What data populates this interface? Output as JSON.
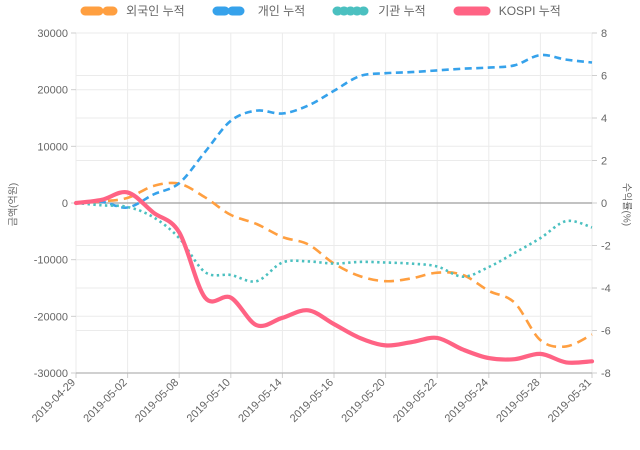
{
  "legend": {
    "items": [
      {
        "label": "외국인 누적",
        "color": "#FF9F40",
        "pattern": "dash-long"
      },
      {
        "label": "개인 누적",
        "color": "#36A2EB",
        "pattern": "dash"
      },
      {
        "label": "기관 누적",
        "color": "#4BC0C0",
        "pattern": "dot"
      },
      {
        "label": "KOSPI 누적",
        "color": "#FF6384",
        "pattern": "solid"
      }
    ]
  },
  "chart_data": {
    "type": "line",
    "title": "",
    "legend_position": "top",
    "grid": true,
    "x_tick_labels": [
      "2019-04-29",
      "2019-05-02",
      "2019-05-08",
      "2019-05-10",
      "2019-05-14",
      "2019-05-16",
      "2019-05-20",
      "2019-05-22",
      "2019-05-24",
      "2019-05-28",
      "2019-05-31"
    ],
    "points_per_tick": 2,
    "left_axis": {
      "label": "금액(억원)",
      "min": -30000,
      "max": 30000,
      "ticks": [
        30000,
        20000,
        10000,
        0,
        -10000,
        -20000,
        -30000
      ]
    },
    "right_axis": {
      "label": "수익률(%)",
      "min": -8,
      "max": 8,
      "ticks": [
        8,
        6,
        4,
        2,
        0,
        -2,
        -4,
        -6,
        -8
      ]
    },
    "series": [
      {
        "name": "외국인 누적",
        "axis": "left",
        "color": "#FF9F40",
        "dash": "10 6",
        "width": 2.6,
        "values": [
          0,
          300,
          900,
          3000,
          3400,
          1000,
          -2100,
          -3700,
          -6000,
          -7300,
          -10700,
          -12900,
          -13800,
          -13300,
          -12300,
          -12700,
          -15500,
          -17600,
          -24200,
          -25300,
          -23200
        ]
      },
      {
        "name": "개인 누적",
        "axis": "left",
        "color": "#36A2EB",
        "dash": "7 4.5",
        "width": 2.6,
        "values": [
          0,
          200,
          -800,
          1500,
          3500,
          9000,
          14500,
          16300,
          15800,
          17200,
          19800,
          22400,
          22900,
          23100,
          23400,
          23700,
          23900,
          24300,
          26100,
          25300,
          24800
        ]
      },
      {
        "name": "기관 누적",
        "axis": "left",
        "color": "#4BC0C0",
        "dash": "2.4 3.4",
        "width": 2.6,
        "values": [
          0,
          -400,
          -700,
          -2500,
          -6200,
          -12200,
          -12700,
          -13800,
          -10500,
          -10300,
          -10700,
          -10400,
          -10500,
          -10700,
          -11200,
          -13000,
          -11300,
          -8800,
          -6200,
          -3200,
          -4300
        ]
      },
      {
        "name": "KOSPI 누적",
        "axis": "right",
        "color": "#FF6384",
        "dash": "",
        "width": 4.2,
        "values": [
          0,
          0.15,
          0.5,
          -0.45,
          -1.38,
          -4.45,
          -4.45,
          -5.75,
          -5.4,
          -5.05,
          -5.7,
          -6.35,
          -6.7,
          -6.55,
          -6.35,
          -6.9,
          -7.3,
          -7.35,
          -7.1,
          -7.5,
          -7.45
        ]
      }
    ]
  }
}
